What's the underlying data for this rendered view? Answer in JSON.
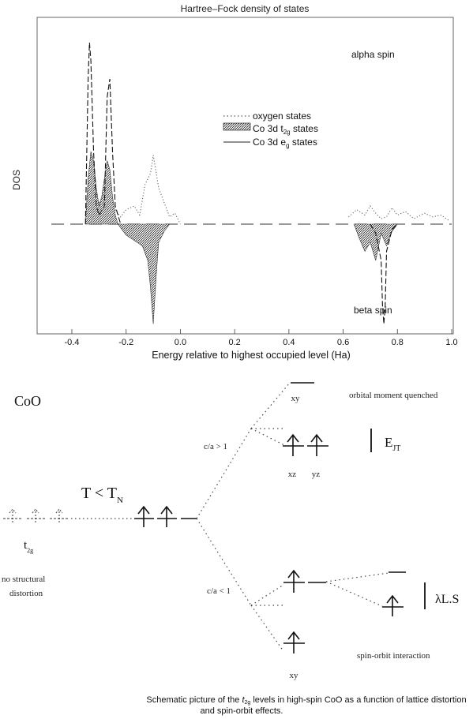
{
  "chart_data": {
    "type": "line",
    "title": "Hartree–Fock density of states",
    "xlabel": "Energy relative to highest occupied level (Ha)",
    "ylabel": "DOS",
    "xlim": [
      -0.5,
      1.0
    ],
    "x_ticks": [
      "-0.4",
      "-0.2",
      "0.0",
      "0.2",
      "0.4",
      "0.6",
      "0.8",
      "1.0"
    ],
    "x_tick_values": [
      -0.4,
      -0.2,
      0.0,
      0.2,
      0.4,
      0.6,
      0.8,
      1.0
    ],
    "annotations": {
      "alpha": "alpha spin",
      "beta": "beta spin"
    },
    "legend": {
      "oxygen": "oxygen states",
      "t2g_pre": "Co 3d t",
      "t2g_sub": "2g",
      "t2g_post": " states",
      "eg_pre": "Co 3d e",
      "eg_sub": "g",
      "eg_post": " states"
    },
    "legend_placement": "center-right",
    "grid": false,
    "series": [
      {
        "name": "oxygen states",
        "style": "dotted",
        "x": [
          -0.33,
          -0.3,
          -0.28,
          -0.25,
          -0.22,
          -0.2,
          -0.17,
          -0.15,
          -0.13,
          -0.11,
          -0.1,
          -0.08,
          -0.06,
          -0.04,
          -0.02,
          0.0,
          0.62,
          0.65,
          0.68,
          0.7,
          0.72,
          0.74,
          0.76,
          0.78,
          0.8,
          0.83,
          0.86,
          0.9,
          0.93,
          0.96,
          0.99
        ],
        "y": [
          0.05,
          0.12,
          0.06,
          0.1,
          0.04,
          0.08,
          0.1,
          0.05,
          0.22,
          0.28,
          0.38,
          0.2,
          0.12,
          0.04,
          0.06,
          0.0,
          0.04,
          0.08,
          0.05,
          0.1,
          0.06,
          0.03,
          0.04,
          0.09,
          0.05,
          0.07,
          0.03,
          0.06,
          0.04,
          0.05,
          0.02
        ]
      },
      {
        "name": "Co 3d t2g states",
        "style": "hatched",
        "x": [
          -0.35,
          -0.34,
          -0.33,
          -0.32,
          -0.31,
          -0.3,
          -0.29,
          -0.28,
          -0.27,
          -0.26,
          -0.25,
          -0.24,
          -0.23,
          -0.22,
          -0.2,
          -0.18,
          -0.16,
          -0.14,
          -0.12,
          -0.11,
          -0.1,
          -0.09,
          -0.08,
          -0.06,
          -0.04,
          0.64,
          0.66,
          0.68,
          0.7,
          0.72,
          0.74,
          0.76,
          0.78,
          0.8
        ],
        "y": [
          0.0,
          0.25,
          0.4,
          0.35,
          0.2,
          0.1,
          0.15,
          0.25,
          0.35,
          0.3,
          0.15,
          0.05,
          0.0,
          -0.02,
          -0.06,
          -0.08,
          -0.1,
          -0.12,
          -0.2,
          -0.35,
          -0.55,
          -0.3,
          -0.1,
          -0.04,
          0.0,
          0.0,
          -0.08,
          -0.15,
          -0.1,
          -0.2,
          -0.05,
          -0.12,
          -0.04,
          0.0
        ]
      },
      {
        "name": "Co 3d eg states",
        "style": "dashed",
        "x": [
          -0.35,
          -0.34,
          -0.335,
          -0.33,
          -0.32,
          -0.31,
          -0.3,
          -0.28,
          -0.27,
          -0.26,
          -0.25,
          -0.24,
          -0.22,
          0.7,
          0.72,
          0.74,
          0.745,
          0.75,
          0.755,
          0.76,
          0.78,
          0.8
        ],
        "y": [
          0.0,
          0.8,
          1.0,
          0.9,
          0.4,
          0.1,
          0.05,
          0.1,
          0.7,
          0.8,
          0.4,
          0.1,
          0.0,
          0.0,
          -0.05,
          -0.2,
          -0.45,
          -0.55,
          -0.45,
          -0.15,
          -0.03,
          0.0
        ]
      }
    ]
  },
  "diagram": {
    "compound": "CoO",
    "orbital_moment": "orbital moment quenched",
    "c_a_gt": "c/a  > 1",
    "c_a_lt": "c/a < 1",
    "temp_T": "T < T",
    "temp_sub": "N",
    "t2g_label": "t",
    "t2g_sub": "2g",
    "no_distortion_1": "no structural",
    "no_distortion_2": "distortion",
    "xy_top": "xy",
    "xz": "xz",
    "yz": "yz",
    "xy_bottom": "xy",
    "ejt_E": "E",
    "ejt_sub": "JT",
    "lambda_ls": "λL.S",
    "spin_orbit": "spin-orbit interaction"
  },
  "caption": {
    "line1_pre": "Schematic picture of the ",
    "line1_t": "t",
    "line1_sub": "2g",
    "line1_post": " levels in high-spin CoO as a function of lattice distortion",
    "line2": "and spin-orbit effects."
  }
}
